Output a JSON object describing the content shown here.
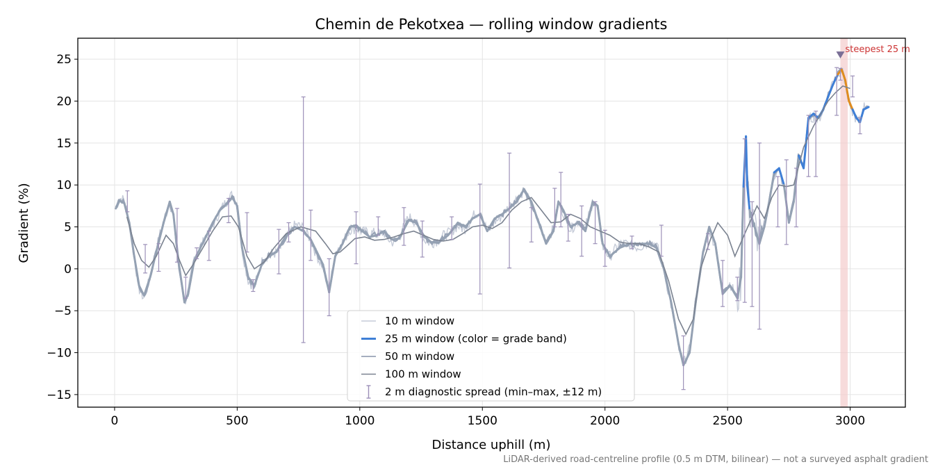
{
  "chart_data": {
    "type": "line",
    "title": "Chemin de Pekotxea — rolling window gradients",
    "xlabel": "Distance uphill (m)",
    "ylabel": "Gradient (%)",
    "xlim": [
      -150,
      3225
    ],
    "ylim": [
      -16.5,
      27.5
    ],
    "x_ticks": [
      0,
      500,
      1000,
      1500,
      2000,
      2500,
      3000
    ],
    "y_ticks": [
      -15,
      -10,
      -5,
      0,
      5,
      10,
      15,
      20,
      25
    ],
    "grid": true,
    "legend_position": "lower-center",
    "footnote": "LiDAR-derived road-centreline profile (0.5 m DTM, bilinear) — not a surveyed asphalt gradient",
    "annotation": {
      "text": "steepest 25 m",
      "x_range": [
        2960,
        2990
      ],
      "marker_x": 2960,
      "marker_y": 25.5,
      "color": "#cc3333"
    },
    "colors": {
      "w10": "#c5cbd8",
      "w25_flat": "#94a1b3",
      "w25_steep": "#3f7fd6",
      "w25_steepest": "#e08c1e",
      "w50": "#98a3b6",
      "w100": "#7a8290",
      "errorbar": "#9c90b8",
      "highlight": "#f3c8c8",
      "grid": "#e4e4e4"
    },
    "series": [
      {
        "key": "w25",
        "name": "25 m window (color = grade band)",
        "x": [
          5,
          20,
          40,
          60,
          80,
          100,
          120,
          145,
          170,
          200,
          225,
          240,
          260,
          285,
          300,
          325,
          350,
          375,
          400,
          430,
          460,
          480,
          500,
          520,
          545,
          570,
          600,
          630,
          660,
          700,
          735,
          770,
          800,
          825,
          850,
          875,
          900,
          930,
          960,
          985,
          1010,
          1040,
          1070,
          1100,
          1130,
          1160,
          1200,
          1230,
          1260,
          1290,
          1320,
          1360,
          1400,
          1430,
          1460,
          1490,
          1520,
          1550,
          1580,
          1610,
          1640,
          1670,
          1700,
          1730,
          1760,
          1790,
          1810,
          1830,
          1860,
          1890,
          1920,
          1950,
          1970,
          1990,
          2020,
          2060,
          2100,
          2140,
          2180,
          2210,
          2240,
          2270,
          2300,
          2320,
          2345,
          2370,
          2400,
          2425,
          2450,
          2480,
          2510,
          2540,
          2555,
          2565,
          2575,
          2580,
          2590,
          2610,
          2630,
          2650,
          2670,
          2690,
          2710,
          2730,
          2750,
          2770,
          2790,
          2810,
          2830,
          2850,
          2870,
          2890,
          2910,
          2930,
          2950,
          2965,
          2980,
          2995,
          3010,
          3025,
          3040,
          3055,
          3075
        ],
        "y": [
          7.2,
          8.1,
          7.8,
          5.5,
          1.5,
          -2.0,
          -3.2,
          -1.0,
          2.0,
          5.5,
          8.0,
          6.5,
          1.0,
          -4.0,
          -3.0,
          1.0,
          2.5,
          4.0,
          5.5,
          7.0,
          7.8,
          8.5,
          7.5,
          2.5,
          -1.0,
          -2.0,
          0.5,
          1.5,
          2.0,
          4.0,
          5.0,
          4.5,
          3.5,
          2.0,
          0.5,
          -2.8,
          1.5,
          3.0,
          5.0,
          5.2,
          4.5,
          3.8,
          4.0,
          4.5,
          3.5,
          3.6,
          5.8,
          5.5,
          4.0,
          3.2,
          3.1,
          4.0,
          5.5,
          5.0,
          6.0,
          6.5,
          4.5,
          6.0,
          6.5,
          7.2,
          8.0,
          9.5,
          8.0,
          5.5,
          3.0,
          4.5,
          8.0,
          7.0,
          5.0,
          5.5,
          4.5,
          8.0,
          7.5,
          3.0,
          1.5,
          2.5,
          3.0,
          3.0,
          3.0,
          2.5,
          0.0,
          -4.0,
          -9.0,
          -11.5,
          -10.0,
          -4.0,
          2.0,
          5.0,
          3.0,
          -3.0,
          -2.0,
          -3.5,
          -1.0,
          9.8,
          15.8,
          10.0,
          7.0,
          5.0,
          3.0,
          5.0,
          8.0,
          11.5,
          12.0,
          10.0,
          5.5,
          8.0,
          13.5,
          12.0,
          18.0,
          18.5,
          18.0,
          19.0,
          20.5,
          22.0,
          23.2,
          23.8,
          22.5,
          20.0,
          19.0,
          18.0,
          17.5,
          19.0,
          19.3
        ],
        "band": [
          "flat",
          "flat",
          "flat",
          "flat",
          "flat",
          "flat",
          "flat",
          "flat",
          "flat",
          "flat",
          "flat",
          "flat",
          "flat",
          "flat",
          "flat",
          "flat",
          "flat",
          "flat",
          "flat",
          "flat",
          "flat",
          "flat",
          "flat",
          "flat",
          "flat",
          "flat",
          "flat",
          "flat",
          "flat",
          "flat",
          "flat",
          "flat",
          "flat",
          "flat",
          "flat",
          "flat",
          "flat",
          "flat",
          "flat",
          "flat",
          "flat",
          "flat",
          "flat",
          "flat",
          "flat",
          "flat",
          "flat",
          "flat",
          "flat",
          "flat",
          "flat",
          "flat",
          "flat",
          "flat",
          "flat",
          "flat",
          "flat",
          "flat",
          "flat",
          "flat",
          "flat",
          "flat",
          "flat",
          "flat",
          "flat",
          "flat",
          "flat",
          "flat",
          "flat",
          "flat",
          "flat",
          "flat",
          "flat",
          "flat",
          "flat",
          "flat",
          "flat",
          "flat",
          "flat",
          "flat",
          "flat",
          "flat",
          "flat",
          "flat",
          "flat",
          "flat",
          "flat",
          "flat",
          "flat",
          "flat",
          "flat",
          "flat",
          "flat",
          "steep",
          "steep",
          "steep",
          "flat",
          "flat",
          "flat",
          "flat",
          "flat",
          "steep",
          "steep",
          "flat",
          "flat",
          "flat",
          "steep",
          "steep",
          "steep",
          "steep",
          "steep",
          "steep",
          "steep",
          "steep",
          "steep",
          "steepest",
          "steepest",
          "steepest",
          "steep",
          "steep",
          "steep",
          "steep",
          "steep"
        ]
      },
      {
        "key": "w100",
        "name": "100 m window",
        "x": [
          50,
          80,
          110,
          140,
          170,
          210,
          240,
          265,
          290,
          320,
          360,
          400,
          440,
          475,
          505,
          540,
          570,
          610,
          650,
          700,
          760,
          820,
          860,
          890,
          920,
          950,
          980,
          1020,
          1060,
          1100,
          1140,
          1180,
          1220,
          1260,
          1300,
          1340,
          1380,
          1420,
          1460,
          1500,
          1540,
          1580,
          1620,
          1660,
          1700,
          1740,
          1780,
          1820,
          1860,
          1900,
          1940,
          1980,
          2020,
          2060,
          2100,
          2140,
          2180,
          2220,
          2260,
          2300,
          2330,
          2360,
          2390,
          2430,
          2460,
          2500,
          2530,
          2560,
          2590,
          2620,
          2650,
          2680,
          2710,
          2740,
          2770,
          2810,
          2850,
          2880,
          2910,
          2940,
          2970,
          3000
        ],
        "y": [
          6.2,
          3.0,
          1.0,
          0.2,
          1.5,
          4.0,
          3.0,
          1.0,
          -0.8,
          0.5,
          2.5,
          4.5,
          6.2,
          6.3,
          5.0,
          1.5,
          0.0,
          0.8,
          2.5,
          4.2,
          5.0,
          4.5,
          3.0,
          1.8,
          2.0,
          2.8,
          3.6,
          3.8,
          3.4,
          3.5,
          3.8,
          4.2,
          4.5,
          4.0,
          3.5,
          3.3,
          3.5,
          4.2,
          5.0,
          5.2,
          4.8,
          5.5,
          7.0,
          8.0,
          8.5,
          7.0,
          5.5,
          5.6,
          6.5,
          6.0,
          5.0,
          4.5,
          4.0,
          3.2,
          3.0,
          3.0,
          2.6,
          2.0,
          -1.5,
          -6.0,
          -7.8,
          -6.0,
          0.0,
          3.5,
          5.5,
          4.0,
          1.5,
          3.5,
          5.5,
          7.5,
          6.0,
          8.5,
          10.0,
          9.8,
          10.0,
          14.5,
          17.0,
          18.5,
          20.0,
          21.0,
          21.8,
          21.5
        ]
      }
    ],
    "legend": [
      {
        "label": "10 m window",
        "style": "w10"
      },
      {
        "label": "25 m window (color = grade band)",
        "style": "w25"
      },
      {
        "label": "50 m window",
        "style": "w50"
      },
      {
        "label": "100 m window",
        "style": "w100"
      },
      {
        "label": "2 m diagnostic spread (min–max, ±12 m)",
        "style": "errorbar"
      }
    ],
    "errorbars": {
      "x": [
        52,
        125,
        180,
        255,
        290,
        335,
        385,
        465,
        540,
        565,
        670,
        710,
        770,
        800,
        875,
        985,
        1075,
        1180,
        1255,
        1375,
        1490,
        1610,
        1700,
        1795,
        1820,
        1850,
        1905,
        1960,
        2000,
        2110,
        2230,
        2320,
        2420,
        2480,
        2540,
        2570,
        2600,
        2630,
        2705,
        2740,
        2780,
        2830,
        2860,
        2945,
        2960,
        3010,
        3040
      ],
      "low": [
        6.8,
        -0.5,
        -0.3,
        0.8,
        -3.5,
        1.2,
        1.0,
        5.5,
        2.0,
        -2.7,
        -0.6,
        3.2,
        -8.8,
        1.0,
        -5.6,
        0.6,
        4.0,
        2.8,
        1.4,
        3.5,
        -3.0,
        0.1,
        3.2,
        5.0,
        5.0,
        3.3,
        1.5,
        3.0,
        0.3,
        2.4,
        1.5,
        -14.4,
        2.3,
        -4.5,
        -3.8,
        -4.0,
        -4.5,
        -7.2,
        5.0,
        2.9,
        5.0,
        11.0,
        11.0,
        18.3,
        22.5,
        20.5,
        16.1
      ],
      "high": [
        9.3,
        2.9,
        3.0,
        7.2,
        -1.0,
        2.5,
        4.5,
        8.4,
        6.7,
        -1.3,
        4.7,
        5.5,
        20.5,
        7.0,
        1.2,
        6.8,
        6.2,
        7.3,
        5.7,
        6.2,
        10.1,
        13.8,
        7.3,
        9.6,
        11.5,
        6.5,
        7.5,
        8.0,
        4.6,
        3.9,
        5.2,
        -8.0,
        4.2,
        1.0,
        -1.0,
        15.5,
        8.0,
        15.0,
        11.0,
        13.0,
        12.0,
        18.3,
        18.8,
        24.0,
        23.9,
        23.0,
        18.0
      ]
    }
  }
}
